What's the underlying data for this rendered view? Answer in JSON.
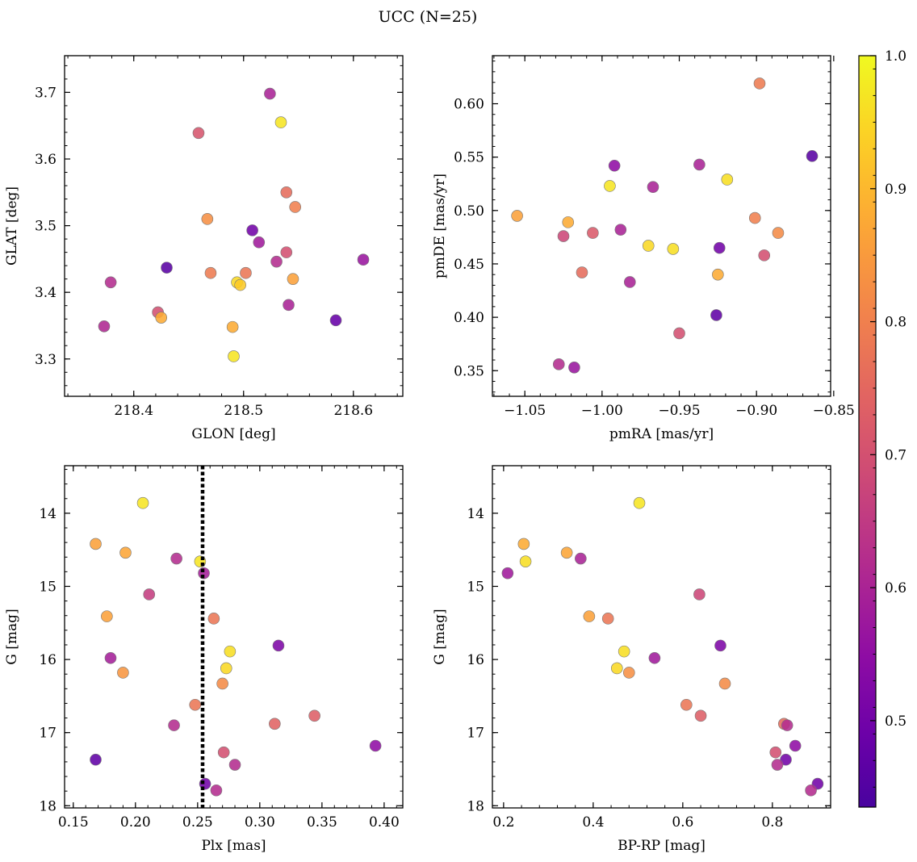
{
  "figure": {
    "title": "UCC (N=25)"
  },
  "colorbar": {
    "min": 0.435,
    "max": 1.0,
    "ticks": [
      0.5,
      0.6,
      0.7,
      0.8,
      0.9,
      1.0
    ],
    "tick_labels": [
      "0.5",
      "0.6",
      "0.7",
      "0.8",
      "0.9",
      "1.0"
    ],
    "colormap": "plasma"
  },
  "chart_data": [
    {
      "type": "scatter",
      "id": "glon-glat",
      "xlabel": "GLON [deg]",
      "ylabel": "GLAT [deg]",
      "xlim": [
        218.337,
        218.645
      ],
      "ylim": [
        3.244,
        3.755
      ],
      "xticks": [
        218.4,
        218.5,
        218.6
      ],
      "xtick_labels": [
        "218.4",
        "218.5",
        "218.6"
      ],
      "yticks": [
        3.3,
        3.4,
        3.5,
        3.6,
        3.7
      ],
      "ytick_labels": [
        "3.3",
        "3.4",
        "3.5",
        "3.6",
        "3.7"
      ],
      "points": [
        {
          "x": 218.524,
          "y": 3.698,
          "c": 0.6
        },
        {
          "x": 218.534,
          "y": 3.655,
          "c": 0.97
        },
        {
          "x": 218.459,
          "y": 3.639,
          "c": 0.71
        },
        {
          "x": 218.539,
          "y": 3.55,
          "c": 0.76
        },
        {
          "x": 218.547,
          "y": 3.528,
          "c": 0.8
        },
        {
          "x": 218.467,
          "y": 3.51,
          "c": 0.83
        },
        {
          "x": 218.508,
          "y": 3.493,
          "c": 0.5
        },
        {
          "x": 218.514,
          "y": 3.475,
          "c": 0.58
        },
        {
          "x": 218.539,
          "y": 3.46,
          "c": 0.7
        },
        {
          "x": 218.609,
          "y": 3.449,
          "c": 0.57
        },
        {
          "x": 218.53,
          "y": 3.446,
          "c": 0.62
        },
        {
          "x": 218.43,
          "y": 3.437,
          "c": 0.46
        },
        {
          "x": 218.47,
          "y": 3.429,
          "c": 0.79
        },
        {
          "x": 218.502,
          "y": 3.429,
          "c": 0.78
        },
        {
          "x": 218.545,
          "y": 3.42,
          "c": 0.86
        },
        {
          "x": 218.379,
          "y": 3.415,
          "c": 0.62
        },
        {
          "x": 218.494,
          "y": 3.415,
          "c": 0.95
        },
        {
          "x": 218.497,
          "y": 3.411,
          "c": 0.93
        },
        {
          "x": 218.541,
          "y": 3.381,
          "c": 0.6
        },
        {
          "x": 218.422,
          "y": 3.37,
          "c": 0.7
        },
        {
          "x": 218.425,
          "y": 3.362,
          "c": 0.88
        },
        {
          "x": 218.584,
          "y": 3.358,
          "c": 0.48
        },
        {
          "x": 218.373,
          "y": 3.349,
          "c": 0.61
        },
        {
          "x": 218.49,
          "y": 3.348,
          "c": 0.88
        },
        {
          "x": 218.491,
          "y": 3.304,
          "c": 0.97
        }
      ]
    },
    {
      "type": "scatter",
      "id": "pmra-pmde",
      "xlabel": "pmRA [mas/yr]",
      "ylabel": "pmDE [mas/yr]",
      "xlim": [
        -1.071,
        -0.852
      ],
      "ylim": [
        0.326,
        0.645
      ],
      "xticks": [
        -1.05,
        -1.0,
        -0.95,
        -0.9,
        -0.85
      ],
      "xtick_labels": [
        "−1.05",
        "−1.00",
        "−0.95",
        "−0.90",
        "−0.85"
      ],
      "yticks": [
        0.35,
        0.4,
        0.45,
        0.5,
        0.55,
        0.6
      ],
      "ytick_labels": [
        "0.35",
        "0.40",
        "0.45",
        "0.50",
        "0.55",
        "0.60"
      ],
      "points": [
        {
          "x": -0.898,
          "y": 0.619,
          "c": 0.79
        },
        {
          "x": -0.864,
          "y": 0.551,
          "c": 0.46
        },
        {
          "x": -0.937,
          "y": 0.543,
          "c": 0.6
        },
        {
          "x": -0.992,
          "y": 0.542,
          "c": 0.55
        },
        {
          "x": -0.919,
          "y": 0.529,
          "c": 0.96
        },
        {
          "x": -0.995,
          "y": 0.523,
          "c": 0.97
        },
        {
          "x": -0.967,
          "y": 0.522,
          "c": 0.6
        },
        {
          "x": -1.055,
          "y": 0.495,
          "c": 0.86
        },
        {
          "x": -0.901,
          "y": 0.493,
          "c": 0.8
        },
        {
          "x": -1.022,
          "y": 0.489,
          "c": 0.88
        },
        {
          "x": -0.988,
          "y": 0.482,
          "c": 0.6
        },
        {
          "x": -0.886,
          "y": 0.479,
          "c": 0.82
        },
        {
          "x": -1.006,
          "y": 0.479,
          "c": 0.72
        },
        {
          "x": -1.025,
          "y": 0.476,
          "c": 0.68
        },
        {
          "x": -0.97,
          "y": 0.467,
          "c": 0.95
        },
        {
          "x": -0.924,
          "y": 0.465,
          "c": 0.5
        },
        {
          "x": -0.954,
          "y": 0.464,
          "c": 0.96
        },
        {
          "x": -0.895,
          "y": 0.458,
          "c": 0.7
        },
        {
          "x": -1.013,
          "y": 0.442,
          "c": 0.76
        },
        {
          "x": -0.925,
          "y": 0.44,
          "c": 0.88
        },
        {
          "x": -0.982,
          "y": 0.433,
          "c": 0.6
        },
        {
          "x": -0.926,
          "y": 0.402,
          "c": 0.47
        },
        {
          "x": -0.95,
          "y": 0.385,
          "c": 0.7
        },
        {
          "x": -1.028,
          "y": 0.356,
          "c": 0.62
        },
        {
          "x": -1.018,
          "y": 0.353,
          "c": 0.57
        }
      ]
    },
    {
      "type": "scatter",
      "id": "plx-g",
      "xlabel": "Plx [mas]",
      "ylabel": "G [mag]",
      "xlim": [
        0.143,
        0.415
      ],
      "ylim": [
        18.03,
        13.35
      ],
      "y_inverted": true,
      "xticks": [
        0.15,
        0.2,
        0.25,
        0.3,
        0.35,
        0.4
      ],
      "xtick_labels": [
        "0.15",
        "0.20",
        "0.25",
        "0.30",
        "0.35",
        "0.40"
      ],
      "yticks": [
        14,
        15,
        16,
        17,
        18
      ],
      "ytick_labels": [
        "14",
        "15",
        "16",
        "17",
        "18"
      ],
      "vline": 0.254,
      "points": [
        {
          "x": 0.206,
          "y": 13.86,
          "c": 0.97
        },
        {
          "x": 0.168,
          "y": 14.42,
          "c": 0.86
        },
        {
          "x": 0.192,
          "y": 14.54,
          "c": 0.87
        },
        {
          "x": 0.233,
          "y": 14.62,
          "c": 0.62
        },
        {
          "x": 0.252,
          "y": 14.66,
          "c": 0.97
        },
        {
          "x": 0.255,
          "y": 14.82,
          "c": 0.59
        },
        {
          "x": 0.211,
          "y": 15.11,
          "c": 0.66
        },
        {
          "x": 0.177,
          "y": 15.41,
          "c": 0.86
        },
        {
          "x": 0.263,
          "y": 15.44,
          "c": 0.78
        },
        {
          "x": 0.315,
          "y": 15.81,
          "c": 0.52
        },
        {
          "x": 0.276,
          "y": 15.89,
          "c": 0.96
        },
        {
          "x": 0.18,
          "y": 15.98,
          "c": 0.59
        },
        {
          "x": 0.273,
          "y": 16.12,
          "c": 0.95
        },
        {
          "x": 0.19,
          "y": 16.18,
          "c": 0.84
        },
        {
          "x": 0.27,
          "y": 16.33,
          "c": 0.82
        },
        {
          "x": 0.248,
          "y": 16.62,
          "c": 0.78
        },
        {
          "x": 0.344,
          "y": 16.77,
          "c": 0.73
        },
        {
          "x": 0.312,
          "y": 16.88,
          "c": 0.74
        },
        {
          "x": 0.231,
          "y": 16.9,
          "c": 0.62
        },
        {
          "x": 0.393,
          "y": 17.18,
          "c": 0.55
        },
        {
          "x": 0.271,
          "y": 17.27,
          "c": 0.7
        },
        {
          "x": 0.168,
          "y": 17.37,
          "c": 0.47
        },
        {
          "x": 0.28,
          "y": 17.44,
          "c": 0.62
        },
        {
          "x": 0.256,
          "y": 17.7,
          "c": 0.5
        },
        {
          "x": 0.265,
          "y": 17.79,
          "c": 0.62
        }
      ]
    },
    {
      "type": "scatter",
      "id": "bprp-g",
      "xlabel": "BP-RP [mag]",
      "ylabel": "G [mag]",
      "xlim": [
        0.175,
        0.93
      ],
      "ylim": [
        18.03,
        13.35
      ],
      "y_inverted": true,
      "xticks": [
        0.2,
        0.4,
        0.6,
        0.8
      ],
      "xtick_labels": [
        "0.2",
        "0.4",
        "0.6",
        "0.8"
      ],
      "yticks": [
        14,
        15,
        16,
        17,
        18
      ],
      "ytick_labels": [
        "14",
        "15",
        "16",
        "17",
        "18"
      ],
      "points": [
        {
          "x": 0.503,
          "y": 13.86,
          "c": 0.97
        },
        {
          "x": 0.245,
          "y": 14.42,
          "c": 0.88
        },
        {
          "x": 0.341,
          "y": 14.54,
          "c": 0.87
        },
        {
          "x": 0.372,
          "y": 14.62,
          "c": 0.6
        },
        {
          "x": 0.249,
          "y": 14.66,
          "c": 0.96
        },
        {
          "x": 0.209,
          "y": 14.82,
          "c": 0.58
        },
        {
          "x": 0.637,
          "y": 15.11,
          "c": 0.68
        },
        {
          "x": 0.391,
          "y": 15.41,
          "c": 0.86
        },
        {
          "x": 0.433,
          "y": 15.44,
          "c": 0.78
        },
        {
          "x": 0.684,
          "y": 15.81,
          "c": 0.52
        },
        {
          "x": 0.469,
          "y": 15.89,
          "c": 0.96
        },
        {
          "x": 0.537,
          "y": 15.98,
          "c": 0.58
        },
        {
          "x": 0.453,
          "y": 16.12,
          "c": 0.95
        },
        {
          "x": 0.48,
          "y": 16.18,
          "c": 0.83
        },
        {
          "x": 0.694,
          "y": 16.33,
          "c": 0.82
        },
        {
          "x": 0.608,
          "y": 16.62,
          "c": 0.78
        },
        {
          "x": 0.64,
          "y": 16.77,
          "c": 0.73
        },
        {
          "x": 0.826,
          "y": 16.88,
          "c": 0.76
        },
        {
          "x": 0.833,
          "y": 16.9,
          "c": 0.62
        },
        {
          "x": 0.851,
          "y": 17.18,
          "c": 0.55
        },
        {
          "x": 0.807,
          "y": 17.27,
          "c": 0.7
        },
        {
          "x": 0.83,
          "y": 17.37,
          "c": 0.5
        },
        {
          "x": 0.811,
          "y": 17.44,
          "c": 0.62
        },
        {
          "x": 0.901,
          "y": 17.7,
          "c": 0.5
        },
        {
          "x": 0.886,
          "y": 17.79,
          "c": 0.62
        }
      ]
    }
  ]
}
